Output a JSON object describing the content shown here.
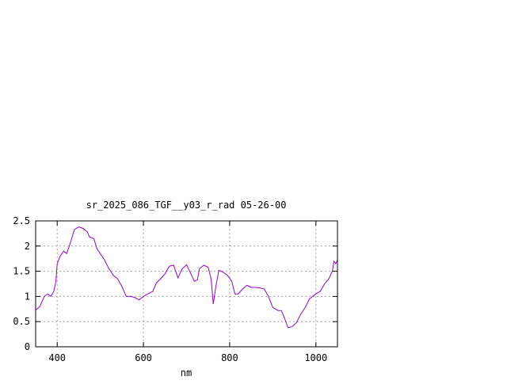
{
  "chart_data": {
    "type": "line",
    "title": "sr_2025_086_TGF__y03_r_rad 05-26-00",
    "xlabel": "nm",
    "ylabel": "",
    "xlim": [
      350,
      1050
    ],
    "ylim": [
      0,
      2.5
    ],
    "x_ticks": [
      400,
      600,
      800,
      1000
    ],
    "y_ticks": [
      0,
      0.5,
      1,
      1.5,
      2,
      2.5
    ],
    "x_tick_labels": [
      "400",
      "600",
      "800",
      "1000"
    ],
    "y_tick_labels": [
      "0",
      "0.5",
      "1",
      "1.5",
      "2",
      "2.5"
    ],
    "grid": true,
    "legend": "none",
    "series": [
      {
        "color": "#9400d3",
        "x": [
          350,
          360,
          370,
          378,
          385,
          392,
          397,
          400,
          407,
          415,
          422,
          430,
          440,
          450,
          460,
          470,
          475,
          485,
          492,
          500,
          510,
          520,
          530,
          540,
          550,
          560,
          570,
          580,
          590,
          600,
          610,
          622,
          630,
          640,
          650,
          660,
          670,
          680,
          690,
          700,
          710,
          718,
          725,
          730,
          740,
          750,
          757,
          762,
          768,
          775,
          785,
          795,
          805,
          812,
          820,
          830,
          840,
          850,
          860,
          870,
          880,
          890,
          900,
          912,
          920,
          928,
          935,
          945,
          955,
          965,
          975,
          985,
          1000,
          1010,
          1020,
          1030,
          1038,
          1042,
          1046,
          1050
        ],
        "y": [
          0.73,
          0.8,
          1.0,
          1.05,
          1.0,
          1.1,
          1.3,
          1.65,
          1.8,
          1.9,
          1.85,
          2.05,
          2.33,
          2.38,
          2.35,
          2.28,
          2.18,
          2.15,
          1.95,
          1.85,
          1.72,
          1.55,
          1.42,
          1.35,
          1.2,
          1.0,
          1.0,
          0.98,
          0.93,
          1.0,
          1.05,
          1.1,
          1.27,
          1.35,
          1.45,
          1.6,
          1.62,
          1.37,
          1.55,
          1.63,
          1.45,
          1.3,
          1.33,
          1.55,
          1.62,
          1.58,
          1.35,
          0.85,
          1.2,
          1.52,
          1.48,
          1.42,
          1.3,
          1.05,
          1.05,
          1.15,
          1.22,
          1.18,
          1.18,
          1.17,
          1.15,
          1.0,
          0.78,
          0.72,
          0.72,
          0.55,
          0.38,
          0.4,
          0.48,
          0.65,
          0.78,
          0.95,
          1.05,
          1.1,
          1.25,
          1.35,
          1.5,
          1.7,
          1.65,
          1.72
        ]
      }
    ]
  }
}
